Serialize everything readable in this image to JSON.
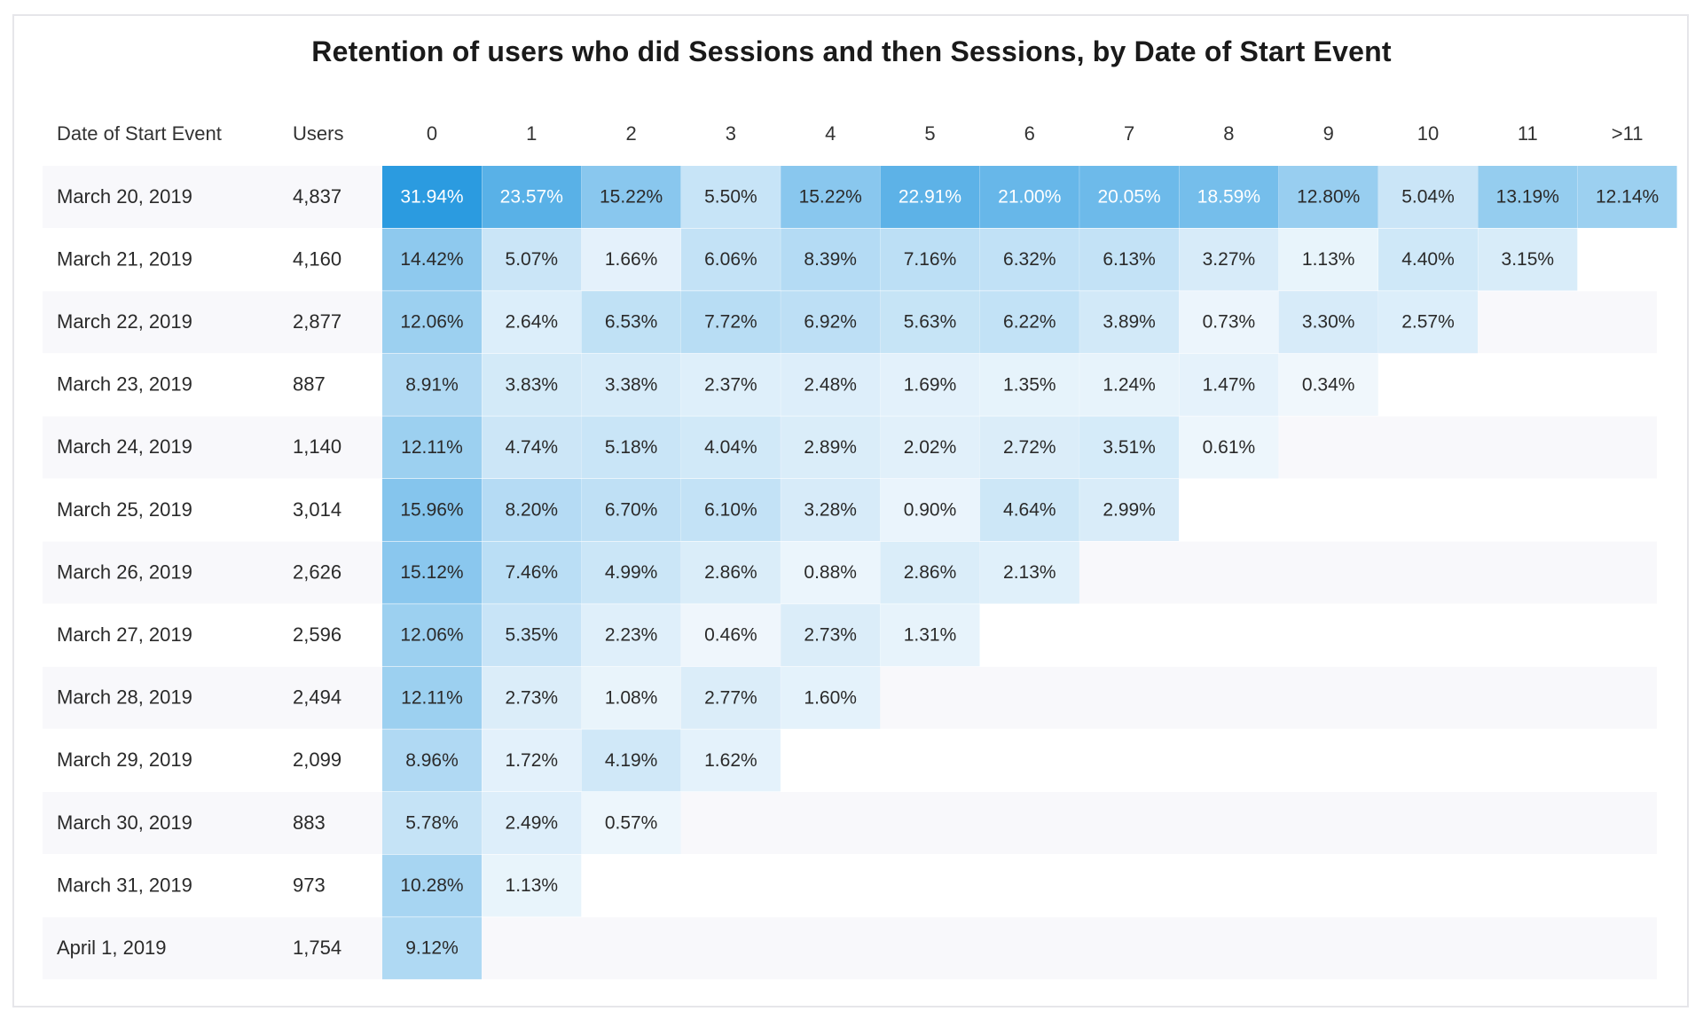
{
  "chart_data": {
    "type": "heatmap",
    "title": "Retention of users who did Sessions and then Sessions, by Date of Start Event",
    "row_header": "Date of Start Event",
    "users_header": "Users",
    "columns": [
      "0",
      "1",
      "2",
      "3",
      "4",
      "5",
      "6",
      "7",
      "8",
      "9",
      "10",
      "11",
      ">11"
    ],
    "rows": [
      {
        "date": "March 20, 2019",
        "users": "4,837",
        "values": [
          "31.94%",
          "23.57%",
          "15.22%",
          "5.50%",
          "15.22%",
          "22.91%",
          "21.00%",
          "20.05%",
          "18.59%",
          "12.80%",
          "5.04%",
          "13.19%",
          "12.14%"
        ]
      },
      {
        "date": "March 21, 2019",
        "users": "4,160",
        "values": [
          "14.42%",
          "5.07%",
          "1.66%",
          "6.06%",
          "8.39%",
          "7.16%",
          "6.32%",
          "6.13%",
          "3.27%",
          "1.13%",
          "4.40%",
          "3.15%"
        ]
      },
      {
        "date": "March 22, 2019",
        "users": "2,877",
        "values": [
          "12.06%",
          "2.64%",
          "6.53%",
          "7.72%",
          "6.92%",
          "5.63%",
          "6.22%",
          "3.89%",
          "0.73%",
          "3.30%",
          "2.57%"
        ]
      },
      {
        "date": "March 23, 2019",
        "users": "887",
        "values": [
          "8.91%",
          "3.83%",
          "3.38%",
          "2.37%",
          "2.48%",
          "1.69%",
          "1.35%",
          "1.24%",
          "1.47%",
          "0.34%"
        ]
      },
      {
        "date": "March 24, 2019",
        "users": "1,140",
        "values": [
          "12.11%",
          "4.74%",
          "5.18%",
          "4.04%",
          "2.89%",
          "2.02%",
          "2.72%",
          "3.51%",
          "0.61%"
        ]
      },
      {
        "date": "March 25, 2019",
        "users": "3,014",
        "values": [
          "15.96%",
          "8.20%",
          "6.70%",
          "6.10%",
          "3.28%",
          "0.90%",
          "4.64%",
          "2.99%"
        ]
      },
      {
        "date": "March 26, 2019",
        "users": "2,626",
        "values": [
          "15.12%",
          "7.46%",
          "4.99%",
          "2.86%",
          "0.88%",
          "2.86%",
          "2.13%"
        ]
      },
      {
        "date": "March 27, 2019",
        "users": "2,596",
        "values": [
          "12.06%",
          "5.35%",
          "2.23%",
          "0.46%",
          "2.73%",
          "1.31%"
        ]
      },
      {
        "date": "March 28, 2019",
        "users": "2,494",
        "values": [
          "12.11%",
          "2.73%",
          "1.08%",
          "2.77%",
          "1.60%"
        ]
      },
      {
        "date": "March 29, 2019",
        "users": "2,099",
        "values": [
          "8.96%",
          "1.72%",
          "4.19%",
          "1.62%"
        ]
      },
      {
        "date": "March 30, 2019",
        "users": "883",
        "values": [
          "5.78%",
          "2.49%",
          "0.57%"
        ]
      },
      {
        "date": "March 31, 2019",
        "users": "973",
        "values": [
          "10.28%",
          "1.13%"
        ]
      },
      {
        "date": "April 1, 2019",
        "users": "1,754",
        "values": [
          "9.12%"
        ]
      }
    ],
    "colors": {
      "max_cell": "#2b9be0",
      "min_cell": "#f4f9fd",
      "row_stripe": "#f8f8fb",
      "text_dark": "#2a2a2a",
      "text_light": "#ffffff"
    }
  }
}
